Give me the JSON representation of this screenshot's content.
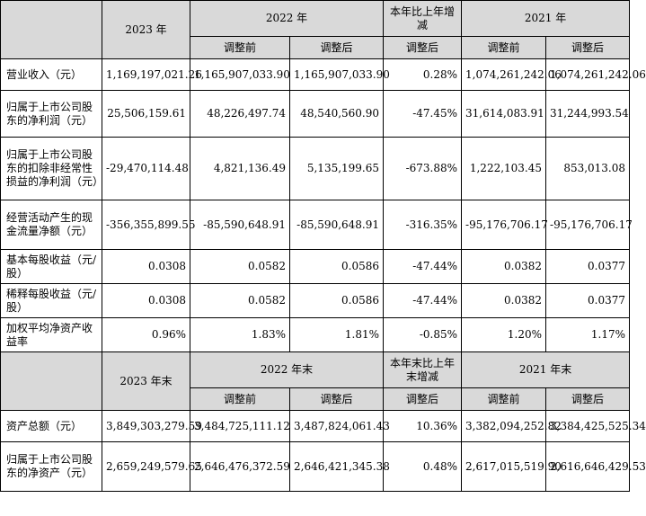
{
  "header1": {
    "y2023": "2023 年",
    "y2022": "2022 年",
    "change": "本年比上年增减",
    "y2021": "2021 年",
    "before": "调整前",
    "after": "调整后",
    "after_change": "调整后",
    "before_2021": "调整前",
    "after_2021": "调整后"
  },
  "rows1": [
    {
      "label": "营业收入（元）",
      "v2023": "1,169,197,021.26",
      "v2022b": "1,165,907,033.90",
      "v2022a": "1,165,907,033.90",
      "chg": "0.28%",
      "v2021b": "1,074,261,242.06",
      "v2021a": "1,074,261,242.06"
    },
    {
      "label": "归属于上市公司股东的净利润（元）",
      "v2023": "25,506,159.61",
      "v2022b": "48,226,497.74",
      "v2022a": "48,540,560.90",
      "chg": "-47.45%",
      "v2021b": "31,614,083.91",
      "v2021a": "31,244,993.54"
    },
    {
      "label": "归属于上市公司股东的扣除非经常性损益的净利润（元）",
      "v2023": "-29,470,114.48",
      "v2022b": "4,821,136.49",
      "v2022a": "5,135,199.65",
      "chg": "-673.88%",
      "v2021b": "1,222,103.45",
      "v2021a": "853,013.08"
    },
    {
      "label": "经营活动产生的现金流量净额（元）",
      "v2023": "-356,355,899.55",
      "v2022b": "-85,590,648.91",
      "v2022a": "-85,590,648.91",
      "chg": "-316.35%",
      "v2021b": "-95,176,706.17",
      "v2021a": "-95,176,706.17"
    },
    {
      "label": "基本每股收益（元/股）",
      "v2023": "0.0308",
      "v2022b": "0.0582",
      "v2022a": "0.0586",
      "chg": "-47.44%",
      "v2021b": "0.0382",
      "v2021a": "0.0377"
    },
    {
      "label": "稀释每股收益（元/股）",
      "v2023": "0.0308",
      "v2022b": "0.0582",
      "v2022a": "0.0586",
      "chg": "-47.44%",
      "v2021b": "0.0382",
      "v2021a": "0.0377"
    },
    {
      "label": "加权平均净资产收益率",
      "v2023": "0.96%",
      "v2022b": "1.83%",
      "v2022a": "1.81%",
      "chg": "-0.85%",
      "v2021b": "1.20%",
      "v2021a": "1.17%"
    }
  ],
  "header2": {
    "y2023": "2023 年末",
    "y2022": "2022 年末",
    "change": "本年末比上年末增减",
    "y2021": "2021 年末",
    "before": "调整前",
    "after": "调整后",
    "after_change": "调整后",
    "before_2021": "调整前",
    "after_2021": "调整后"
  },
  "rows2": [
    {
      "label": "资产总额（元）",
      "v2023": "3,849,303,279.59",
      "v2022b": "3,484,725,111.12",
      "v2022a": "3,487,824,061.43",
      "chg": "10.36%",
      "v2021b": "3,382,094,252.82",
      "v2021a": "3,384,425,525.34"
    },
    {
      "label": "归属于上市公司股东的净资产（元）",
      "v2023": "2,659,249,579.65",
      "v2022b": "2,646,476,372.59",
      "v2022a": "2,646,421,345.38",
      "chg": "0.48%",
      "v2021b": "2,617,015,519.90",
      "v2021a": "2,616,646,429.53"
    }
  ]
}
